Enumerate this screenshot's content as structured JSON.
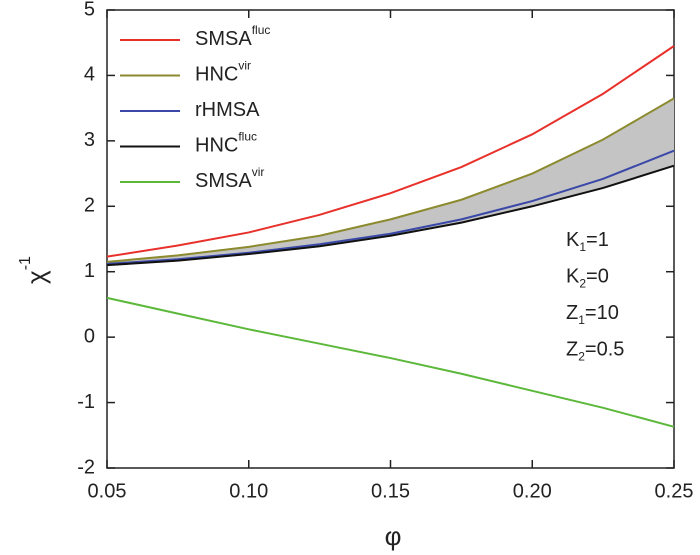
{
  "chart_data": {
    "type": "line",
    "x_label": "φ",
    "y_label": {
      "base": "χ",
      "sup": "-1"
    },
    "x": [
      0.05,
      0.075,
      0.1,
      0.125,
      0.15,
      0.175,
      0.2,
      0.225,
      0.25
    ],
    "series": [
      {
        "name": "SMSA",
        "name_sup": "fluc",
        "color": "#e8312b",
        "values": [
          1.23,
          1.4,
          1.6,
          1.87,
          2.2,
          2.6,
          3.1,
          3.72,
          4.45
        ]
      },
      {
        "name": "HNC",
        "name_sup": "vir",
        "color": "#8c8a2e",
        "values": [
          1.15,
          1.25,
          1.38,
          1.55,
          1.8,
          2.1,
          2.5,
          3.02,
          3.65
        ]
      },
      {
        "name": "rHMSA",
        "color": "#3a48a8",
        "values": [
          1.12,
          1.19,
          1.29,
          1.42,
          1.58,
          1.8,
          2.08,
          2.42,
          2.85
        ]
      },
      {
        "name": "HNC",
        "name_sup": "fluc",
        "color": "#111111",
        "values": [
          1.1,
          1.17,
          1.27,
          1.39,
          1.55,
          1.75,
          2.0,
          2.28,
          2.62
        ]
      },
      {
        "name": "SMSA",
        "name_sup": "vir",
        "color": "#5cb83a",
        "values": [
          0.6,
          0.36,
          0.12,
          -0.1,
          -0.32,
          -0.56,
          -0.82,
          -1.08,
          -1.37
        ]
      }
    ],
    "shade_between": [
      1,
      3
    ],
    "shade_color": "#c4c4c4",
    "xlim": [
      0.05,
      0.25
    ],
    "ylim": [
      -2,
      5
    ],
    "xticks": [
      {
        "value": 0.05,
        "label": "0.05"
      },
      {
        "value": 0.1,
        "label": "0.10"
      },
      {
        "value": 0.15,
        "label": "0.15"
      },
      {
        "value": 0.2,
        "label": "0.20"
      },
      {
        "value": 0.25,
        "label": "0.25"
      }
    ],
    "yticks": [
      -2,
      -1,
      0,
      1,
      2,
      3,
      4,
      5
    ],
    "annotations": [
      {
        "base": "K",
        "sub": "1",
        "rest": "=1"
      },
      {
        "base": "K",
        "sub": "2",
        "rest": "=0"
      },
      {
        "base": "Z",
        "sub": "1",
        "rest": "=10"
      },
      {
        "base": "Z",
        "sub": "2",
        "rest": "=0.5"
      }
    ]
  }
}
